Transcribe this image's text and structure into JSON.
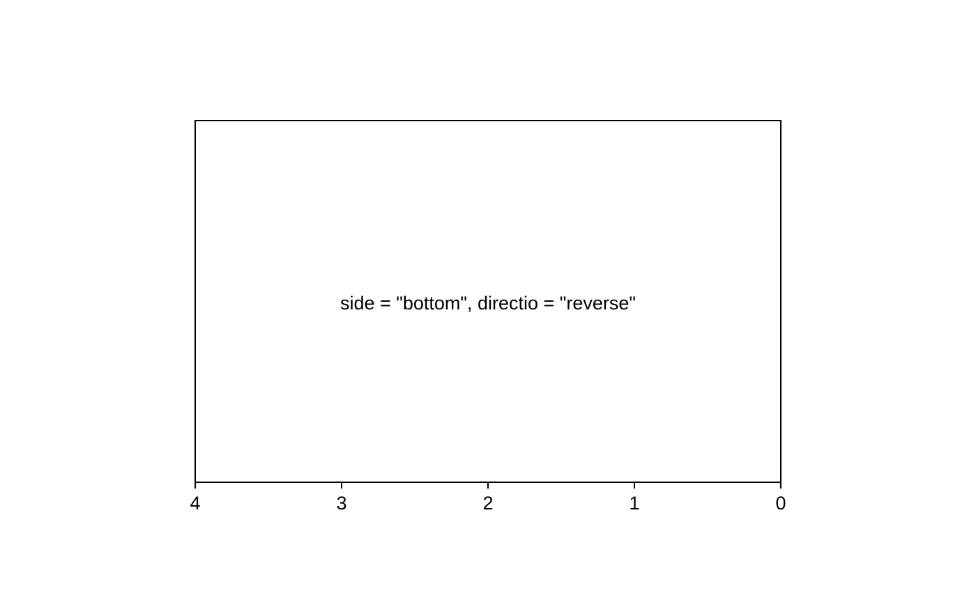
{
  "chart_data": {
    "type": "scatter",
    "title": "",
    "xlabel": "",
    "ylabel": "",
    "annotation": "side = \"bottom\", directio = \"reverse\"",
    "x_axis": {
      "side": "bottom",
      "direction": "reverse",
      "range": [
        0,
        4
      ],
      "ticks": [
        4,
        3,
        2,
        1,
        0
      ],
      "tick_labels": [
        "4",
        "3",
        "2",
        "1",
        "0"
      ]
    },
    "y_axis": {
      "visible": false
    },
    "grid": false,
    "legend": "none",
    "series": [],
    "colors": {
      "axis": "#000000",
      "text": "#000000",
      "background": "#ffffff"
    }
  }
}
